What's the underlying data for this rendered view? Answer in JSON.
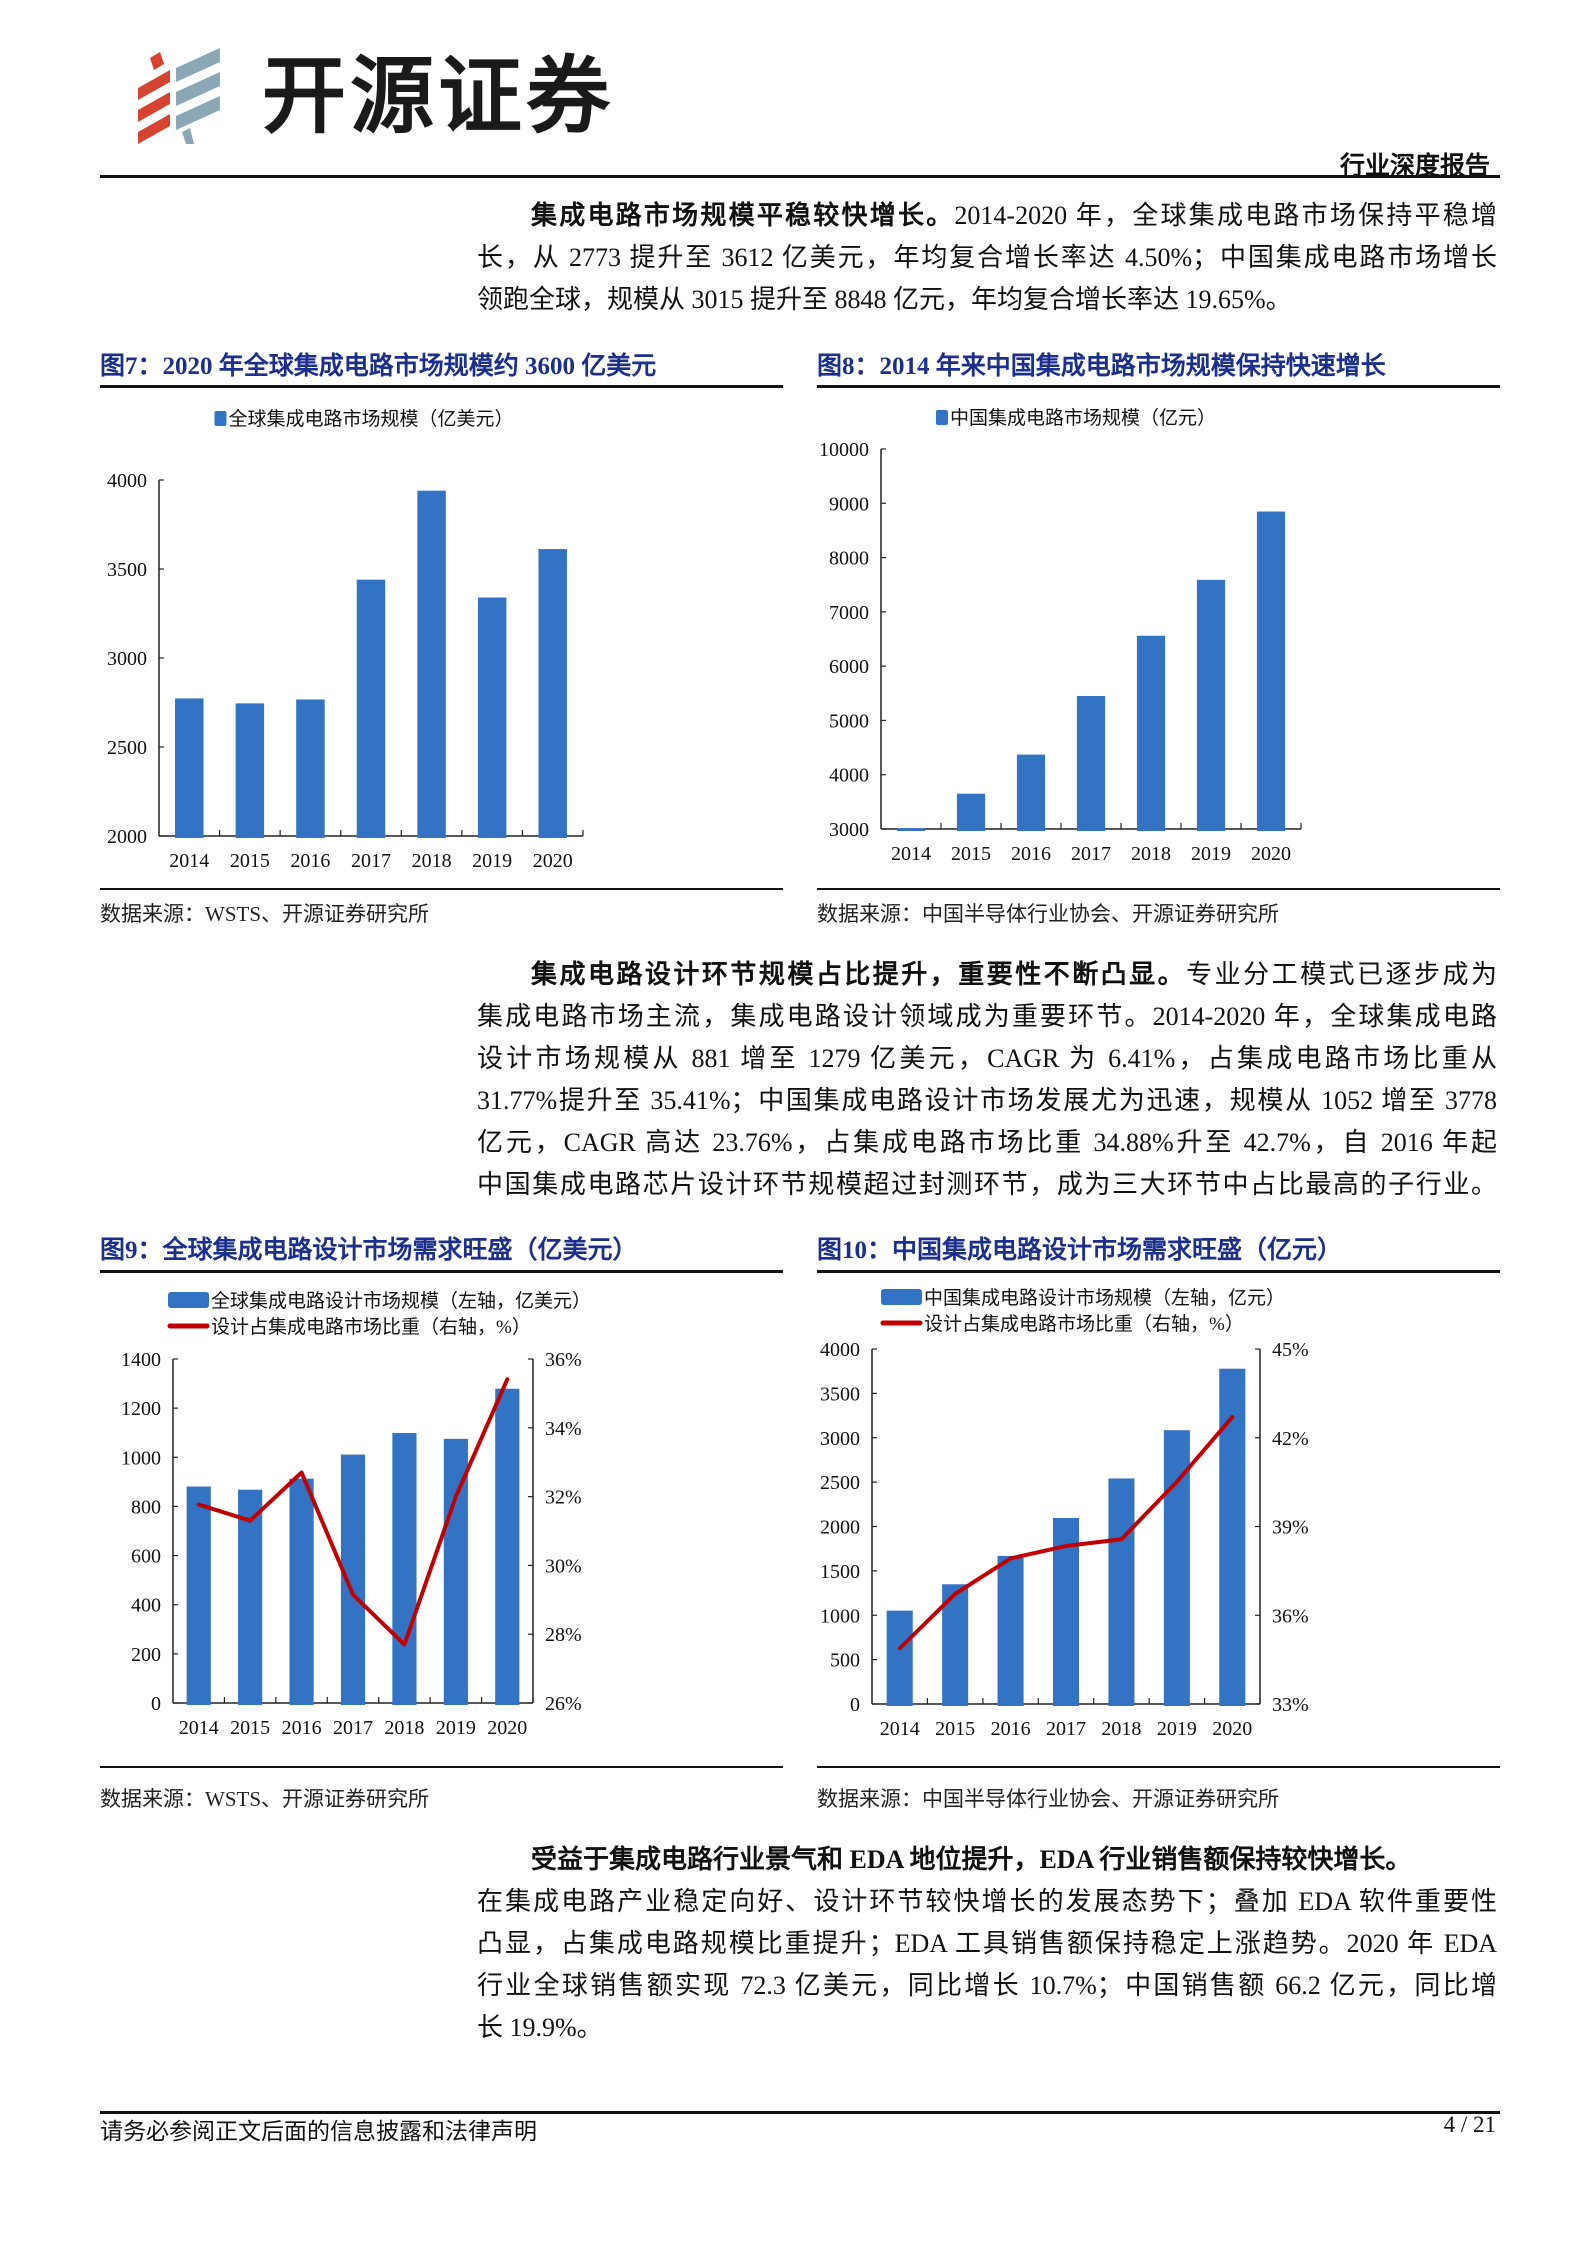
{
  "header": {
    "brand": "开源证券",
    "report_type": "行业深度报告"
  },
  "paragraphs": [
    {
      "lead": "集成电路市场规模平稳较快增长。",
      "lines": [
        "2014-2020 年，全球集成电路市场保持平稳增",
        "长，从 2773 提升至 3612 亿美元，年均复合增长率达 4.50%；中国集成电路市场增长",
        "领跑全球，规模从 3015 提升至 8848 亿元，年均复合增长率达 19.65%。"
      ]
    },
    {
      "lead": "集成电路设计环节规模占比提升，重要性不断凸显。",
      "lines": [
        "专业分工模式已逐步成为",
        "集成电路市场主流，集成电路设计领域成为重要环节。2014-2020 年，全球集成电路",
        "设计市场规模从 881 增至 1279 亿美元，CAGR 为 6.41%，占集成电路市场比重从",
        "31.77%提升至 35.41%；中国集成电路设计市场发展尤为迅速，规模从 1052 增至 3778",
        "亿元，CAGR 高达 23.76%，占集成电路市场比重 34.88%升至 42.7%，自 2016 年起",
        "中国集成电路芯片设计环节规模超过封测环节，成为三大环节中占比最高的子行业。"
      ]
    },
    {
      "lead": "受益于集成电路行业景气和 EDA 地位提升，EDA 行业销售额保持较快增长。",
      "lines": [
        "",
        "在集成电路产业稳定向好、设计环节较快增长的发展态势下；叠加 EDA 软件重要性",
        "凸显，占集成电路规模比重提升；EDA 工具销售额保持稳定上涨趋势。2020 年 EDA",
        "行业全球销售额实现 72.3 亿美元，同比增长 10.7%；中国销售额 66.2 亿元，同比增",
        "长 19.9%。"
      ]
    }
  ],
  "figures": [
    {
      "title": "图7：2020 年全球集成电路市场规模约 3600 亿美元",
      "source": "数据来源：WSTS、开源证券研究所"
    },
    {
      "title": "图8：2014 年来中国集成电路市场规模保持快速增长",
      "source": "数据来源：中国半导体行业协会、开源证券研究所"
    },
    {
      "title": "图9：全球集成电路设计市场需求旺盛（亿美元）",
      "source": "数据来源：WSTS、开源证券研究所"
    },
    {
      "title": "图10：中国集成电路设计市场需求旺盛（亿元）",
      "source": "数据来源：中国半导体行业协会、开源证券研究所"
    }
  ],
  "footer": {
    "disclaimer": "请务必参阅正文后面的信息披露和法律声明",
    "page": "4 / 21"
  },
  "colors": {
    "bar": "#3273c4",
    "line": "#c00000",
    "figure_title": "#1b2f8c",
    "logo_red": "#d64330",
    "logo_grey": "#8aa7b5"
  },
  "chart_data": [
    {
      "type": "bar",
      "categories": [
        "2014",
        "2015",
        "2016",
        "2017",
        "2018",
        "2019",
        "2020"
      ],
      "series": [
        {
          "name": "全球集成电路市场规模（亿美元）",
          "values": [
            2773,
            2745,
            2767,
            3440,
            3940,
            3340,
            3612
          ]
        }
      ],
      "ylim": [
        2000,
        4000
      ],
      "yticks": [
        "2000",
        "2500",
        "3000",
        "3500",
        "4000"
      ],
      "legend": "top"
    },
    {
      "type": "bar",
      "categories": [
        "2014",
        "2015",
        "2016",
        "2017",
        "2018",
        "2019",
        "2020"
      ],
      "series": [
        {
          "name": "中国集成电路市场规模（亿元）",
          "values": [
            3015,
            3650,
            4370,
            5450,
            6560,
            7590,
            8848
          ]
        }
      ],
      "ylim": [
        3000,
        10000
      ],
      "yticks": [
        "3000",
        "4000",
        "5000",
        "6000",
        "7000",
        "8000",
        "9000",
        "10000"
      ],
      "legend": "top"
    },
    {
      "type": "bar+line",
      "categories": [
        "2014",
        "2015",
        "2016",
        "2017",
        "2018",
        "2019",
        "2020"
      ],
      "series": [
        {
          "name": "全球集成电路设计市场规模（左轴，亿美元）",
          "axis": "left",
          "values": [
            881,
            868,
            913,
            1011,
            1099,
            1075,
            1279
          ]
        },
        {
          "name": "设计占集成电路市场比重（右轴，%）",
          "axis": "right",
          "values": [
            31.77,
            31.3,
            32.7,
            29.15,
            27.7,
            32.0,
            35.41
          ]
        }
      ],
      "ylim": [
        0,
        1400
      ],
      "yticks": [
        "0",
        "200",
        "400",
        "600",
        "800",
        "1000",
        "1200",
        "1400"
      ],
      "y2lim": [
        26,
        36
      ],
      "y2ticks": [
        "26%",
        "28%",
        "30%",
        "32%",
        "34%",
        "36%"
      ],
      "legend": "top"
    },
    {
      "type": "bar+line",
      "categories": [
        "2014",
        "2015",
        "2016",
        "2017",
        "2018",
        "2019",
        "2020"
      ],
      "series": [
        {
          "name": "中国集成电路设计市场规模（左轴，亿元）",
          "axis": "left",
          "values": [
            1052,
            1349,
            1668,
            2096,
            2541,
            3085,
            3778
          ]
        },
        {
          "name": "设计占集成电路市场比重（右轴，%）",
          "axis": "right",
          "values": [
            34.88,
            36.72,
            37.92,
            38.34,
            38.57,
            40.51,
            42.7
          ]
        }
      ],
      "ylim": [
        0,
        4000
      ],
      "yticks": [
        "0",
        "500",
        "1000",
        "1500",
        "2000",
        "2500",
        "3000",
        "3500",
        "4000"
      ],
      "y2lim": [
        33,
        45
      ],
      "y2ticks": [
        "33%",
        "36%",
        "39%",
        "42%",
        "45%"
      ],
      "legend": "top"
    }
  ]
}
